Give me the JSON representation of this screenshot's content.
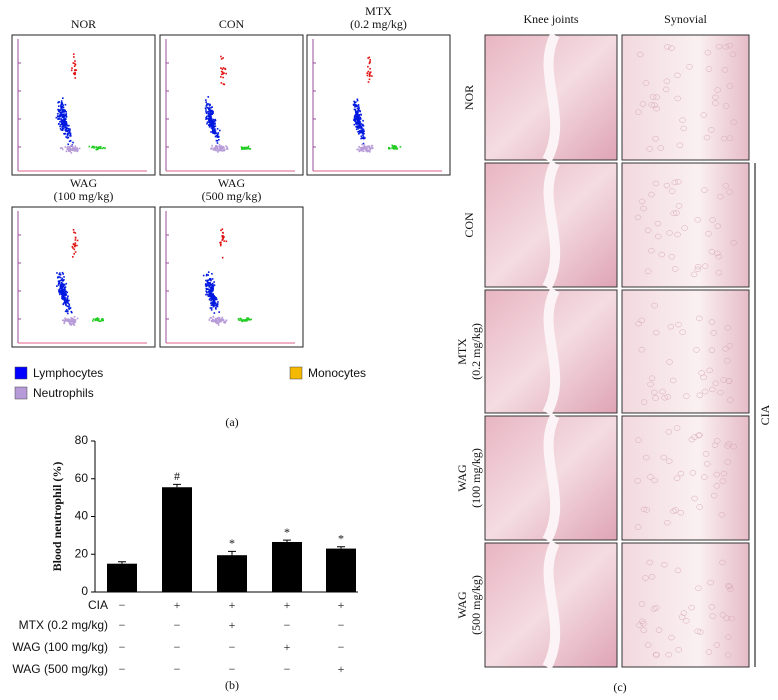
{
  "panel_a": {
    "plots": [
      {
        "title": [
          "NOR"
        ]
      },
      {
        "title": [
          "CON"
        ]
      },
      {
        "title": [
          "MTX",
          "(0.2 mg/kg)"
        ]
      },
      {
        "title": [
          "WAG",
          "(100 mg/kg)"
        ]
      },
      {
        "title": [
          "WAG",
          "(500 mg/kg)"
        ]
      }
    ],
    "legend": [
      {
        "name": "Lymphocytes",
        "color": "#0000ff"
      },
      {
        "name": "Neutrophils",
        "color": "#b79ad8"
      },
      {
        "name": "Monocytes",
        "color": "#f5b800"
      }
    ],
    "label": "(a)"
  },
  "chart_data": {
    "type": "bar",
    "y_label": "Blood neutrophil (%)",
    "categories": [
      null,
      null,
      null,
      null,
      null
    ],
    "values": [
      15,
      55.5,
      19.5,
      26.5,
      23
    ],
    "errors": [
      1,
      1.5,
      2,
      1,
      1
    ],
    "annotations": [
      null,
      "#",
      "*",
      "*",
      "*"
    ],
    "color": "#000000",
    "ylim": [
      0,
      80
    ],
    "yticks": [
      0,
      20,
      40,
      60,
      80
    ],
    "treatments": [
      {
        "label": "CIA",
        "marks": [
          "−",
          "+",
          "+",
          "+",
          "+"
        ]
      },
      {
        "label": "MTX (0.2 mg/kg)",
        "marks": [
          "−",
          "−",
          "+",
          "−",
          "−"
        ]
      },
      {
        "label": "WAG (100 mg/kg)",
        "marks": [
          "−",
          "−",
          "−",
          "+",
          "−"
        ]
      },
      {
        "label": "WAG (500 mg/kg)",
        "marks": [
          "−",
          "−",
          "−",
          "−",
          "+"
        ]
      }
    ],
    "label": "(b)"
  },
  "panel_c": {
    "columns": [
      "Knee joints",
      "Synovial"
    ],
    "rows": [
      [
        "NOR"
      ],
      [
        "CON"
      ],
      [
        "MTX",
        "(0.2 mg/kg)"
      ],
      [
        "WAG",
        "(100 mg/kg)"
      ],
      [
        "WAG",
        "(500 mg/kg)"
      ]
    ],
    "group": "CIA",
    "label": "(c)"
  }
}
